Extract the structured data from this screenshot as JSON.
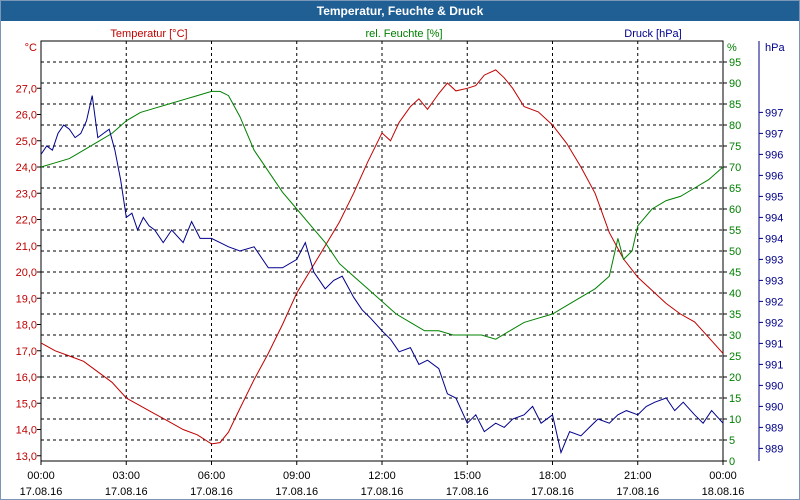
{
  "window": {
    "title": "Temperatur, Feuchte & Druck"
  },
  "chart_data": {
    "type": "line",
    "title": "Temperatur, Feuchte & Druck",
    "x_tick_labels": [
      [
        "00:00",
        "17.08.16"
      ],
      [
        "03:00",
        "17.08.16"
      ],
      [
        "06:00",
        "17.08.16"
      ],
      [
        "09:00",
        "17.08.16"
      ],
      [
        "12:00",
        "17.08.16"
      ],
      [
        "15:00",
        "17.08.16"
      ],
      [
        "18:00",
        "17.08.16"
      ],
      [
        "21:00",
        "17.08.16"
      ],
      [
        "00:00",
        "18.08.16"
      ]
    ],
    "x_range_hours": [
      0,
      24
    ],
    "grid": true,
    "axes": {
      "temperature": {
        "label": "Temperatur [°C]",
        "unit": "°C",
        "range": [
          12.8,
          28.8
        ],
        "ticks": [
          "13,0",
          "14,0",
          "15,0",
          "16,0",
          "17,0",
          "18,0",
          "19,0",
          "20,0",
          "21,0",
          "22,0",
          "23,0",
          "24,0",
          "25,0",
          "26,0",
          "27,0"
        ],
        "tick_values": [
          13,
          14,
          15,
          16,
          17,
          18,
          19,
          20,
          21,
          22,
          23,
          24,
          25,
          26,
          27
        ],
        "color": "#c00000"
      },
      "humidity": {
        "label": "rel. Feuchte [%]",
        "unit": "%",
        "range": [
          0,
          100
        ],
        "ticks": [
          "0",
          "5",
          "10",
          "15",
          "20",
          "25",
          "30",
          "35",
          "40",
          "45",
          "50",
          "55",
          "60",
          "65",
          "70",
          "75",
          "80",
          "85",
          "90",
          "95"
        ],
        "tick_values": [
          0,
          5,
          10,
          15,
          20,
          25,
          30,
          35,
          40,
          45,
          50,
          55,
          60,
          65,
          70,
          75,
          80,
          85,
          90,
          95
        ],
        "color": "#008000"
      },
      "pressure": {
        "label": "Druck [hPa]",
        "unit": "hPa",
        "range": [
          988.6,
          998.6
        ],
        "ticks": [
          "989",
          "989",
          "990",
          "990",
          "991",
          "991",
          "992",
          "992",
          "993",
          "993",
          "994",
          "994",
          "995",
          "996",
          "996",
          "997"
        ],
        "tick_values": [
          988.9,
          989.4,
          989.9,
          990.4,
          990.9,
          991.4,
          991.9,
          992.4,
          992.9,
          993.4,
          993.9,
          994.4,
          994.9,
          995.4,
          995.9,
          996.4
        ],
        "top_tick": "997",
        "top_tick_value": 996.9,
        "color": "#00008b"
      }
    },
    "series": [
      {
        "name": "Temperatur [°C]",
        "axis": "temperature",
        "color": "#c00000",
        "x": [
          0,
          0.5,
          1,
          1.5,
          2,
          2.5,
          3,
          3.5,
          4,
          4.5,
          5,
          5.5,
          6,
          6.3,
          6.6,
          7,
          7.5,
          8,
          8.5,
          9,
          9.5,
          10,
          10.5,
          11,
          11.5,
          12,
          12.3,
          12.6,
          13,
          13.3,
          13.6,
          14,
          14.3,
          14.6,
          15,
          15.3,
          15.6,
          16,
          16.3,
          16.6,
          17,
          17.5,
          18,
          18.5,
          19,
          19.5,
          20,
          20.5,
          21,
          21.5,
          22,
          22.5,
          23,
          23.5,
          24
        ],
        "y": [
          17.3,
          17.0,
          16.8,
          16.6,
          16.2,
          15.8,
          15.2,
          14.9,
          14.6,
          14.3,
          14.0,
          13.8,
          13.45,
          13.5,
          13.9,
          14.8,
          15.9,
          16.9,
          18.0,
          19.2,
          20.1,
          21.0,
          21.9,
          23.0,
          24.2,
          25.3,
          25.0,
          25.7,
          26.3,
          26.6,
          26.2,
          26.8,
          27.2,
          26.9,
          27.0,
          27.1,
          27.5,
          27.7,
          27.4,
          27.0,
          26.3,
          26.1,
          25.6,
          24.9,
          24.0,
          23.0,
          21.5,
          20.5,
          19.8,
          19.3,
          18.8,
          18.4,
          18.1,
          17.5,
          16.9
        ]
      },
      {
        "name": "rel. Feuchte [%]",
        "axis": "humidity",
        "color": "#008000",
        "x": [
          0,
          0.5,
          1,
          1.5,
          2,
          2.5,
          3,
          3.5,
          4,
          4.5,
          5,
          5.5,
          6,
          6.3,
          6.6,
          7,
          7.5,
          8,
          8.5,
          9,
          9.5,
          10,
          10.5,
          11,
          11.5,
          12,
          12.5,
          13,
          13.5,
          14,
          14.5,
          15,
          15.5,
          16,
          16.5,
          17,
          17.5,
          18,
          18.5,
          19,
          19.5,
          20,
          20.3,
          20.5,
          20.8,
          21,
          21.5,
          22,
          22.5,
          23,
          23.5,
          24
        ],
        "y": [
          70,
          71,
          72,
          74,
          76,
          78,
          81,
          83,
          84,
          85,
          86,
          87,
          88,
          88,
          87,
          82,
          74,
          69,
          64,
          60,
          56,
          52,
          47,
          44,
          41,
          38,
          35,
          33,
          31,
          31,
          30,
          30,
          30,
          29,
          31,
          33,
          34,
          35,
          37,
          39,
          41,
          44,
          53,
          48,
          50,
          56,
          60,
          62,
          63,
          65,
          67,
          70
        ]
      },
      {
        "name": "Druck [hPa]",
        "axis": "pressure",
        "color": "#00008b",
        "x": [
          0,
          0.2,
          0.4,
          0.6,
          0.8,
          1,
          1.2,
          1.4,
          1.6,
          1.8,
          2,
          2.2,
          2.4,
          2.6,
          2.8,
          3,
          3.2,
          3.4,
          3.6,
          3.8,
          4,
          4.3,
          4.6,
          5,
          5.3,
          5.6,
          6,
          6.3,
          6.6,
          7,
          7.5,
          8,
          8.5,
          9,
          9.3,
          9.6,
          10,
          10.3,
          10.6,
          11,
          11.3,
          11.6,
          12,
          12.3,
          12.6,
          13,
          13.3,
          13.6,
          14,
          14.3,
          14.6,
          15,
          15.3,
          15.6,
          16,
          16.3,
          16.6,
          17,
          17.3,
          17.6,
          18,
          18.3,
          18.6,
          19,
          19.3,
          19.6,
          20,
          20.3,
          20.6,
          21,
          21.3,
          21.6,
          22,
          22.3,
          22.6,
          23,
          23.3,
          23.6,
          24
        ],
        "y": [
          995.9,
          996.1,
          996.0,
          996.4,
          996.6,
          996.5,
          996.3,
          996.4,
          996.7,
          997.3,
          996.3,
          996.4,
          996.5,
          996.0,
          995.3,
          994.4,
          994.5,
          994.1,
          994.4,
          994.2,
          994.1,
          993.8,
          994.1,
          993.8,
          994.3,
          993.9,
          993.9,
          993.8,
          993.7,
          993.6,
          993.7,
          993.2,
          993.2,
          993.4,
          993.8,
          993.1,
          992.7,
          992.9,
          993.0,
          992.5,
          992.2,
          992.0,
          991.7,
          991.5,
          991.2,
          991.3,
          990.9,
          991.0,
          990.8,
          990.2,
          990.1,
          989.5,
          989.7,
          989.3,
          989.5,
          989.4,
          989.6,
          989.7,
          989.9,
          989.5,
          989.7,
          988.8,
          989.3,
          989.2,
          989.4,
          989.6,
          989.5,
          989.7,
          989.8,
          989.7,
          989.9,
          990.0,
          990.1,
          989.8,
          990.0,
          989.7,
          989.5,
          989.8,
          989.5
        ]
      }
    ]
  }
}
